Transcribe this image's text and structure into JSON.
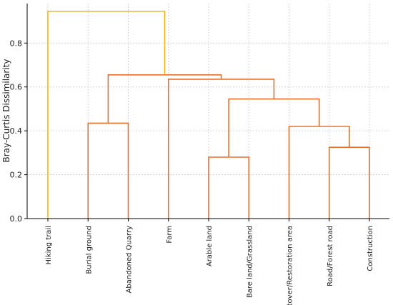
{
  "chart_data": {
    "type": "dendrogram",
    "title": "",
    "xlabel": "",
    "ylabel": "Bray-Curtis Dissimilarity",
    "ylim": [
      0,
      0.98
    ],
    "yticks": [
      0.0,
      0.2,
      0.4,
      0.6,
      0.8
    ],
    "grid": true,
    "leaves": [
      "Hiking trail",
      "Burial ground",
      "Abandoned Quarry",
      "Farm",
      "Arable land",
      "Bare land/Grassland",
      "Cutover/Restoration area",
      "Road/Forest road",
      "Construction"
    ],
    "colors": {
      "top_link": "#f2b21a",
      "cluster": "#e6702e"
    },
    "merges": [
      {
        "left": "Arable land",
        "right": "Bare land/Grassland",
        "height": 0.28
      },
      {
        "left": "Road/Forest road",
        "right": "Construction",
        "height": 0.325
      },
      {
        "left": "Burial ground",
        "right": "Abandoned Quarry",
        "height": 0.435
      },
      {
        "left": "Cutover/Restoration area",
        "right": "{Road/Forest road, Construction}",
        "height": 0.42
      },
      {
        "left": "{Arable land, Bare land/Grassland}",
        "right": "{Cutover/Restoration area, Road/Forest road, Construction}",
        "height": 0.545
      },
      {
        "left": "Farm",
        "right": "{Arable land ... Construction}",
        "height": 0.635
      },
      {
        "left": "{Burial ground, Abandoned Quarry}",
        "right": "{Farm ... Construction}",
        "height": 0.655
      },
      {
        "left": "Hiking trail",
        "right": "{Burial ground ... Construction}",
        "height": 0.945
      }
    ]
  }
}
